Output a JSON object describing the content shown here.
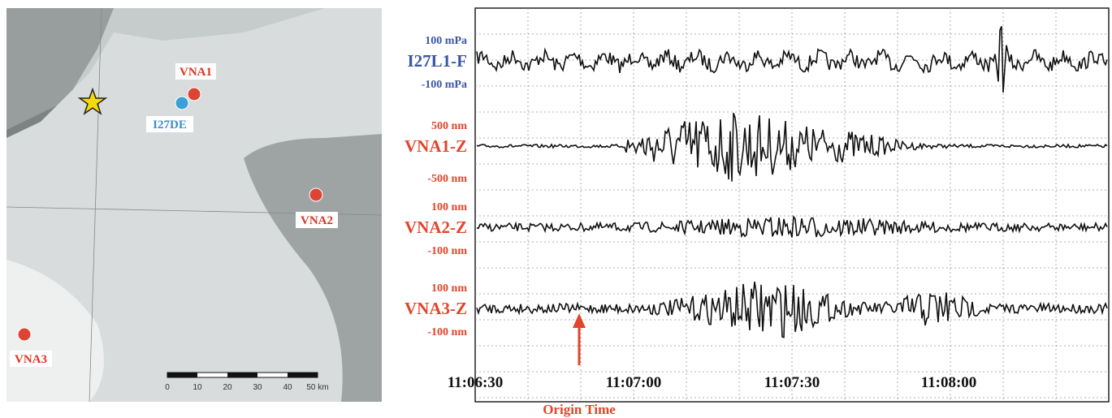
{
  "map": {
    "stations": [
      {
        "label": "VNA1"
      },
      {
        "label": "VNA2"
      },
      {
        "label": "VNA3"
      }
    ],
    "array": {
      "label": "I27DE"
    },
    "scale": [
      "0",
      "10",
      "20",
      "30",
      "40",
      "50 km"
    ]
  },
  "seismogram": {
    "traces": [
      {
        "label": "I27L1-F",
        "upper": "100 mPa",
        "lower": "-100 mPa"
      },
      {
        "label": "VNA1-Z",
        "upper": "500 nm",
        "lower": "-500 nm"
      },
      {
        "label": "VNA2-Z",
        "upper": "100 nm",
        "lower": "-100 nm"
      },
      {
        "label": "VNA3-Z",
        "upper": "100 nm",
        "lower": "-100 nm"
      }
    ],
    "time_labels": [
      "11:06:30",
      "11:07:00",
      "11:07:30",
      "11:08:00"
    ],
    "annotation": "Origin Time"
  }
}
